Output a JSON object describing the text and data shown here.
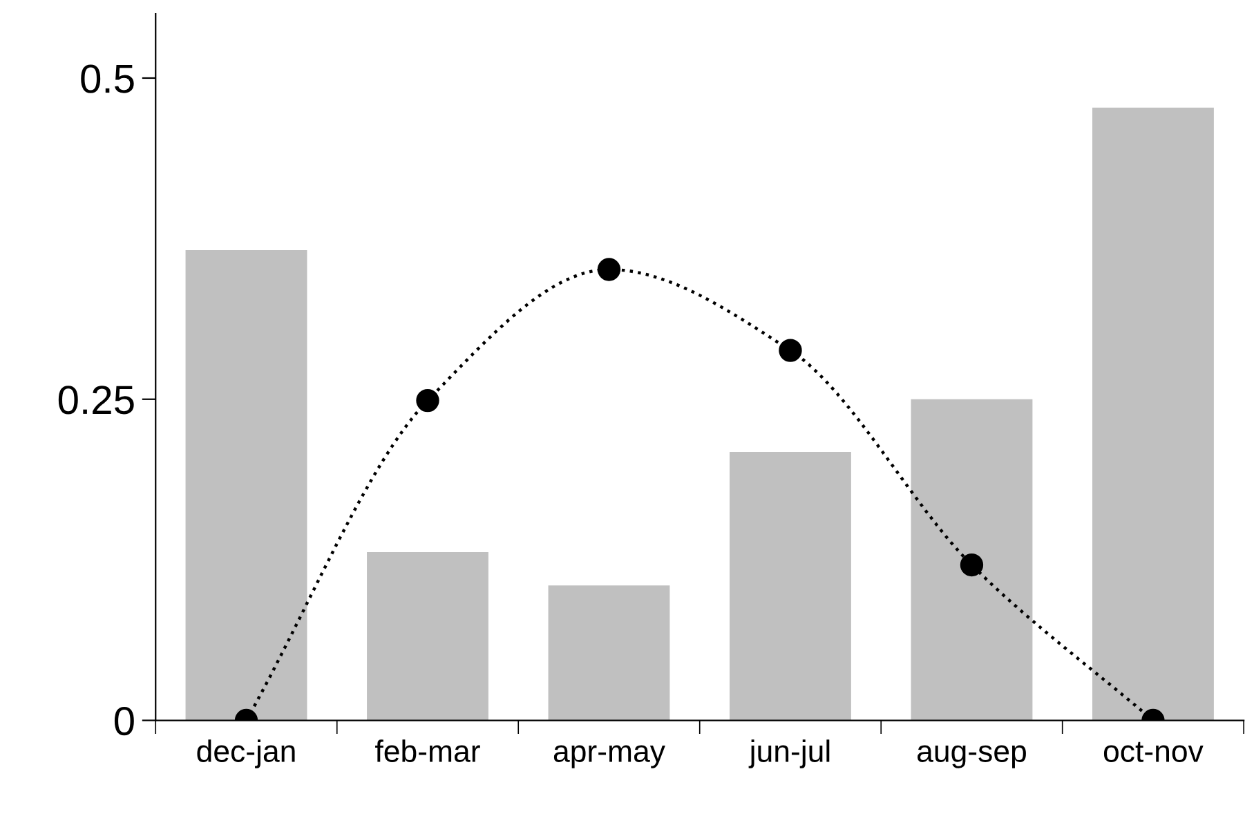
{
  "chart_data": {
    "type": "bar",
    "categories": [
      "dec-jan",
      "feb-mar",
      "apr-may",
      "jun-jul",
      "aug-sep",
      "oct-nov"
    ],
    "series": [
      {
        "type": "bar",
        "color": "#c0c0c0",
        "values": [
          0.366,
          0.131,
          0.105,
          0.209,
          0.25,
          0.477
        ]
      },
      {
        "type": "line",
        "color": "#000000",
        "values": [
          0,
          0.249,
          0.351,
          0.288,
          0.121,
          0
        ],
        "marker": "circle",
        "line_style": "dotted"
      }
    ],
    "ylim": [
      0,
      0.55
    ],
    "yticks": [
      0,
      0.25,
      0.5
    ],
    "grid": false,
    "legend": false
  }
}
